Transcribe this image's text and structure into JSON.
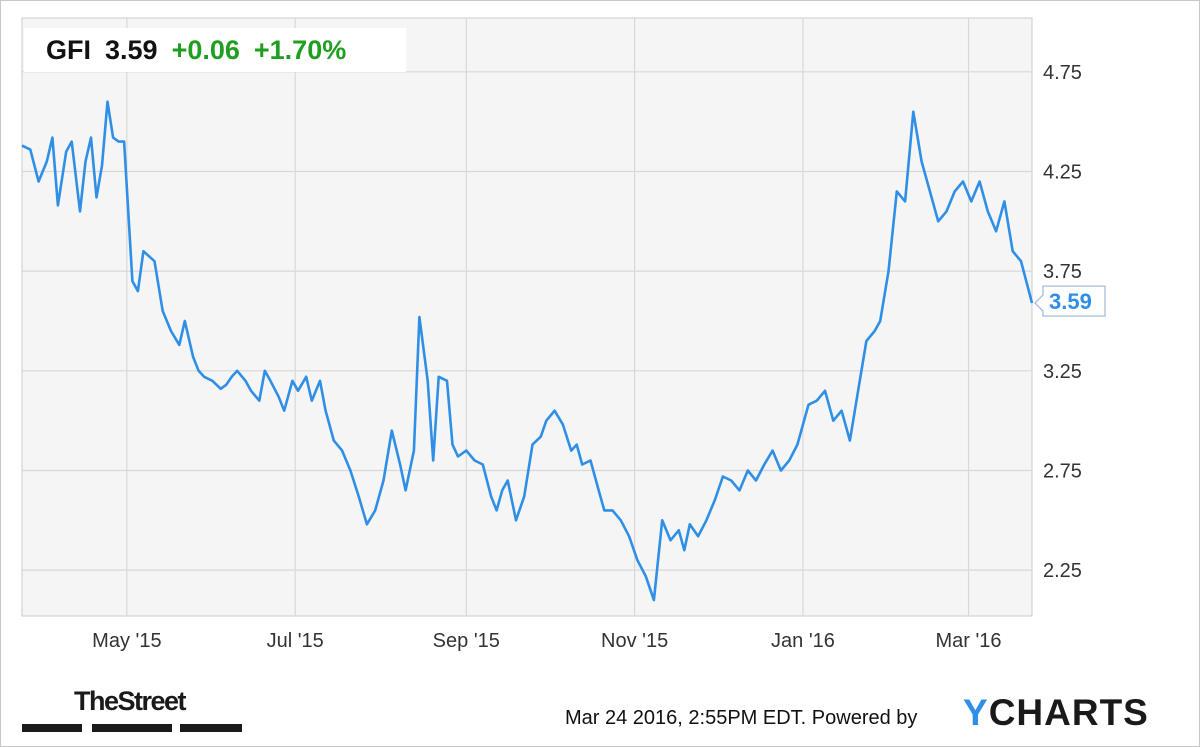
{
  "header": {
    "symbol": "GFI",
    "price": "3.59",
    "change": "+0.06",
    "change_pct": "+1.70%"
  },
  "current_label": "3.59",
  "footer": {
    "brand": "TheStreet",
    "timestamp": "Mar 24 2016, 2:55PM EDT.",
    "powered_by": "Powered by",
    "logo_y": "Y",
    "logo_rest": "CHARTS"
  },
  "colors": {
    "line": "#2f8fe6",
    "up": "#1f9e1f",
    "plot_bg": "#f5f5f5",
    "grid": "#d8d8d8"
  },
  "chart_data": {
    "type": "line",
    "title": "",
    "xlabel": "",
    "ylabel": "",
    "grid": true,
    "legend": "none",
    "ylim": [
      2.02,
      5.02
    ],
    "xlim": [
      "2015-03-24",
      "2016-03-24"
    ],
    "x_ticks": [
      {
        "label": "May '15",
        "date": "2015-05-01"
      },
      {
        "label": "Jul '15",
        "date": "2015-07-01"
      },
      {
        "label": "Sep '15",
        "date": "2015-09-01"
      },
      {
        "label": "Nov '15",
        "date": "2015-11-01"
      },
      {
        "label": "Jan '16",
        "date": "2016-01-01"
      },
      {
        "label": "Mar '16",
        "date": "2016-03-01"
      }
    ],
    "y_ticks": [
      2.25,
      2.75,
      3.25,
      3.75,
      4.25,
      4.75
    ],
    "series": [
      {
        "x": [
          "2015-03-24",
          "2015-03-27",
          "2015-03-30",
          "2015-04-02",
          "2015-04-04",
          "2015-04-06",
          "2015-04-09",
          "2015-04-11",
          "2015-04-14",
          "2015-04-16",
          "2015-04-18",
          "2015-04-20",
          "2015-04-22",
          "2015-04-24",
          "2015-04-26",
          "2015-04-28",
          "2015-04-30",
          "2015-05-03",
          "2015-05-05",
          "2015-05-07",
          "2015-05-11",
          "2015-05-14",
          "2015-05-17",
          "2015-05-20",
          "2015-05-22",
          "2015-05-25",
          "2015-05-27",
          "2015-05-29",
          "2015-06-01",
          "2015-06-04",
          "2015-06-06",
          "2015-06-08",
          "2015-06-10",
          "2015-06-13",
          "2015-06-15",
          "2015-06-18",
          "2015-06-20",
          "2015-06-22",
          "2015-06-25",
          "2015-06-27",
          "2015-06-30",
          "2015-07-02",
          "2015-07-05",
          "2015-07-07",
          "2015-07-10",
          "2015-07-12",
          "2015-07-15",
          "2015-07-18",
          "2015-07-21",
          "2015-07-24",
          "2015-07-27",
          "2015-07-30",
          "2015-08-02",
          "2015-08-05",
          "2015-08-08",
          "2015-08-10",
          "2015-08-13",
          "2015-08-15",
          "2015-08-18",
          "2015-08-20",
          "2015-08-22",
          "2015-08-25",
          "2015-08-27",
          "2015-08-29",
          "2015-09-01",
          "2015-09-04",
          "2015-09-07",
          "2015-09-10",
          "2015-09-12",
          "2015-09-14",
          "2015-09-16",
          "2015-09-19",
          "2015-09-22",
          "2015-09-25",
          "2015-09-28",
          "2015-09-30",
          "2015-10-03",
          "2015-10-06",
          "2015-10-09",
          "2015-10-11",
          "2015-10-13",
          "2015-10-16",
          "2015-10-19",
          "2015-10-21",
          "2015-10-24",
          "2015-10-27",
          "2015-10-30",
          "2015-11-02",
          "2015-11-05",
          "2015-11-08",
          "2015-11-11",
          "2015-11-14",
          "2015-11-17",
          "2015-11-19",
          "2015-11-21",
          "2015-11-24",
          "2015-11-27",
          "2015-11-30",
          "2015-12-03",
          "2015-12-06",
          "2015-12-09",
          "2015-12-12",
          "2015-12-15",
          "2015-12-18",
          "2015-12-21",
          "2015-12-24",
          "2015-12-27",
          "2015-12-30",
          "2016-01-03",
          "2016-01-06",
          "2016-01-09",
          "2016-01-12",
          "2016-01-15",
          "2016-01-18",
          "2016-01-21",
          "2016-01-24",
          "2016-01-27",
          "2016-01-29",
          "2016-02-01",
          "2016-02-04",
          "2016-02-07",
          "2016-02-10",
          "2016-02-13",
          "2016-02-16",
          "2016-02-19",
          "2016-02-22",
          "2016-02-25",
          "2016-02-28",
          "2016-03-02",
          "2016-03-05",
          "2016-03-08",
          "2016-03-11",
          "2016-03-14",
          "2016-03-17",
          "2016-03-20",
          "2016-03-24"
        ],
        "y": [
          4.38,
          4.36,
          4.2,
          4.3,
          4.42,
          4.08,
          4.35,
          4.4,
          4.05,
          4.3,
          4.42,
          4.12,
          4.28,
          4.6,
          4.42,
          4.4,
          4.4,
          3.7,
          3.65,
          3.85,
          3.8,
          3.55,
          3.45,
          3.38,
          3.5,
          3.32,
          3.25,
          3.22,
          3.2,
          3.16,
          3.18,
          3.22,
          3.25,
          3.2,
          3.15,
          3.1,
          3.25,
          3.2,
          3.12,
          3.05,
          3.2,
          3.15,
          3.22,
          3.1,
          3.2,
          3.05,
          2.9,
          2.85,
          2.75,
          2.62,
          2.48,
          2.55,
          2.7,
          2.95,
          2.78,
          2.65,
          2.85,
          3.52,
          3.2,
          2.8,
          3.22,
          3.2,
          2.88,
          2.82,
          2.85,
          2.8,
          2.78,
          2.62,
          2.55,
          2.65,
          2.7,
          2.5,
          2.62,
          2.88,
          2.92,
          3.0,
          3.05,
          2.98,
          2.85,
          2.88,
          2.78,
          2.8,
          2.65,
          2.55,
          2.55,
          2.5,
          2.42,
          2.3,
          2.22,
          2.1,
          2.5,
          2.4,
          2.45,
          2.35,
          2.48,
          2.42,
          2.5,
          2.6,
          2.72,
          2.7,
          2.65,
          2.75,
          2.7,
          2.78,
          2.85,
          2.75,
          2.8,
          2.88,
          3.08,
          3.1,
          3.15,
          3.0,
          3.05,
          2.9,
          3.15,
          3.4,
          3.45,
          3.5,
          3.75,
          4.15,
          4.1,
          4.55,
          4.3,
          4.15,
          4.0,
          4.05,
          4.15,
          4.2,
          4.1,
          4.2,
          4.05,
          3.95,
          4.1,
          3.85,
          3.8,
          3.59
        ]
      }
    ]
  }
}
